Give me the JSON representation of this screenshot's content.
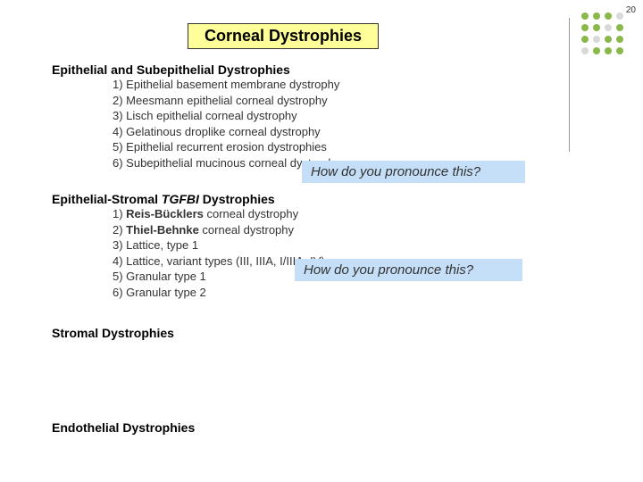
{
  "page_number": "20",
  "title": "Corneal Dystrophies",
  "dots": {
    "colors": [
      "#8bb84a",
      "#8bb84a",
      "#8bb84a",
      "#d9d9d9",
      "#8bb84a",
      "#8bb84a",
      "#d9d9d9",
      "#8bb84a",
      "#8bb84a",
      "#d9d9d9",
      "#8bb84a",
      "#8bb84a",
      "#d9d9d9",
      "#8bb84a",
      "#8bb84a",
      "#8bb84a"
    ]
  },
  "sections": {
    "s1": {
      "heading": "Epithelial and Subepithelial Dystrophies",
      "items": [
        "1) Epithelial basement membrane dystrophy",
        "2) Meesmann epithelial corneal dystrophy",
        "3) Lisch epithelial corneal dystrophy",
        "4) Gelatinous droplike corneal dystrophy",
        "5) Epithelial recurrent erosion dystrophies",
        "6) Subepithelial mucinous corneal dystrophy"
      ]
    },
    "s2": {
      "heading_pre": "Epithelial-Stromal ",
      "heading_italic": "TGFBI",
      "heading_post": " Dystrophies",
      "items": {
        "i1_pre": "1) ",
        "i1_bold": "Reis-Bücklers",
        "i1_post": " corneal dystrophy",
        "i2_pre": "2) ",
        "i2_bold": "Thiel-Behnke",
        "i2_post": " corneal dystrophy",
        "i3": "3) Lattice, type 1",
        "i4": "4) Lattice, variant types (III, IIIA, I/IIIA, IV)",
        "i5": "5) Granular type 1",
        "i6": "6) Granular type 2"
      }
    },
    "s3": {
      "heading": "Stromal Dystrophies"
    },
    "s4": {
      "heading": "Endothelial Dystrophies"
    }
  },
  "callouts": {
    "c1": "How do you pronounce this?",
    "c2": "How do you pronounce this?"
  },
  "style": {
    "callout_bg": "#c4dff7",
    "title_bg": "#ffff99"
  }
}
